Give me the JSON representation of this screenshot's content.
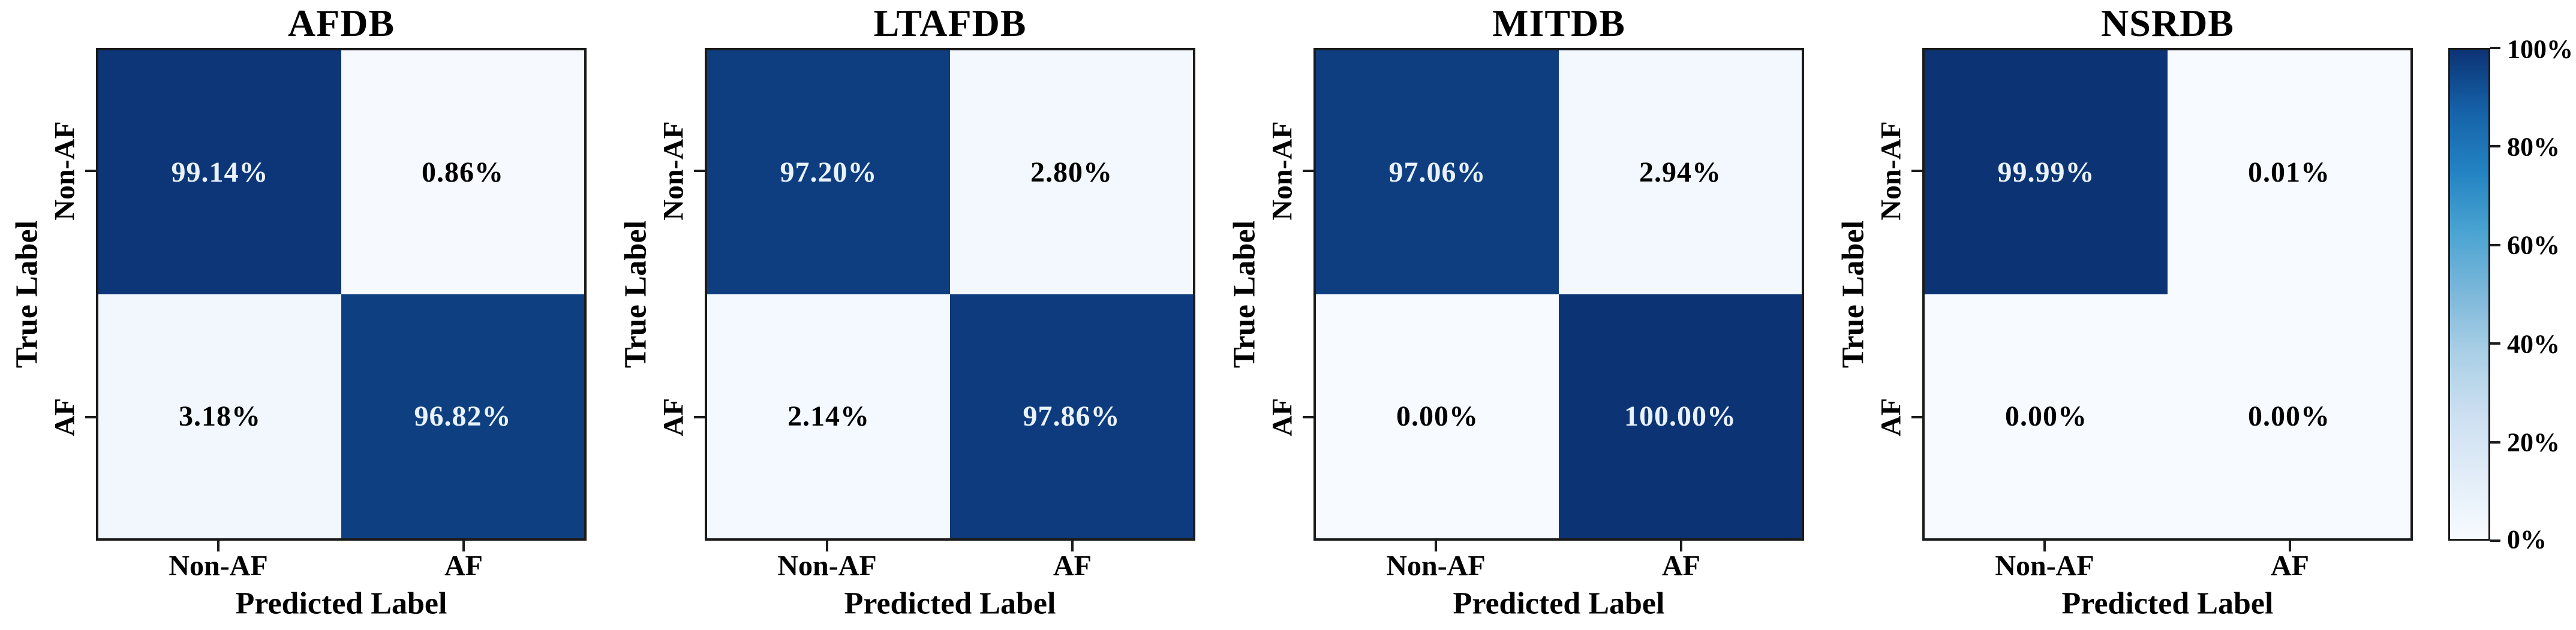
{
  "figure": {
    "background": "#ffffff",
    "axis_color": "#1b1b1b"
  },
  "chart_data": [
    {
      "type": "heatmap",
      "title": "AFDB",
      "xlabel": "Predicted Label",
      "ylabel": "True Label",
      "x_categories": [
        "Non-AF",
        "AF"
      ],
      "y_categories": [
        "Non-AF",
        "AF"
      ],
      "unit": "%",
      "vmin": 0,
      "vmax": 100,
      "values": [
        [
          99.14,
          0.86
        ],
        [
          3.18,
          96.82
        ]
      ],
      "cell_labels": [
        [
          "99.14%",
          "0.86%"
        ],
        [
          "3.18%",
          "96.82%"
        ]
      ]
    },
    {
      "type": "heatmap",
      "title": "LTAFDB",
      "xlabel": "Predicted Label",
      "ylabel": "True Label",
      "x_categories": [
        "Non-AF",
        "AF"
      ],
      "y_categories": [
        "Non-AF",
        "AF"
      ],
      "unit": "%",
      "vmin": 0,
      "vmax": 100,
      "values": [
        [
          97.2,
          2.8
        ],
        [
          2.14,
          97.86
        ]
      ],
      "cell_labels": [
        [
          "97.20%",
          "2.80%"
        ],
        [
          "2.14%",
          "97.86%"
        ]
      ]
    },
    {
      "type": "heatmap",
      "title": "MITDB",
      "xlabel": "Predicted Label",
      "ylabel": "True Label",
      "x_categories": [
        "Non-AF",
        "AF"
      ],
      "y_categories": [
        "Non-AF",
        "AF"
      ],
      "unit": "%",
      "vmin": 0,
      "vmax": 100,
      "values": [
        [
          97.06,
          2.94
        ],
        [
          0.0,
          100.0
        ]
      ],
      "cell_labels": [
        [
          "97.06%",
          "2.94%"
        ],
        [
          "0.00%",
          "100.00%"
        ]
      ]
    },
    {
      "type": "heatmap",
      "title": "NSRDB",
      "xlabel": "Predicted Label",
      "ylabel": "True Label",
      "x_categories": [
        "Non-AF",
        "AF"
      ],
      "y_categories": [
        "Non-AF",
        "AF"
      ],
      "unit": "%",
      "vmin": 0,
      "vmax": 100,
      "values": [
        [
          99.99,
          0.01
        ],
        [
          0.0,
          0.0
        ]
      ],
      "cell_labels": [
        [
          "99.99%",
          "0.01%"
        ],
        [
          "0.00%",
          "0.00%"
        ]
      ]
    }
  ],
  "colorbar": {
    "orientation": "vertical",
    "position": "right",
    "tick_labels": [
      "100%",
      "80%",
      "60%",
      "40%",
      "20%",
      "0%"
    ],
    "tick_values": [
      100,
      80,
      60,
      40,
      20,
      0
    ]
  },
  "colormap": {
    "text_threshold": 50,
    "high_text_color": "#e9f2fa",
    "low_text_color": "#000000",
    "stops": [
      {
        "p": 0,
        "color": "#f7fbff"
      },
      {
        "p": 12.5,
        "color": "#e2edf8"
      },
      {
        "p": 25,
        "color": "#cde0f1"
      },
      {
        "p": 37.5,
        "color": "#abd0e6"
      },
      {
        "p": 50,
        "color": "#7db8da"
      },
      {
        "p": 62.5,
        "color": "#4ba4d2"
      },
      {
        "p": 75,
        "color": "#2383c2"
      },
      {
        "p": 87.5,
        "color": "#1562a9"
      },
      {
        "p": 100,
        "color": "#0c3374"
      }
    ]
  }
}
